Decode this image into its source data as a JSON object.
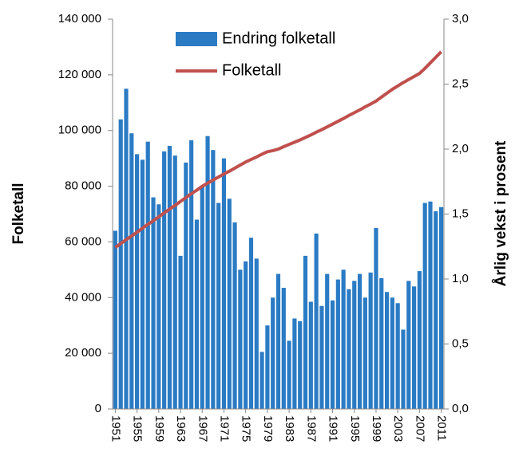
{
  "chart_data": {
    "type": "bar_line",
    "categories": [
      "1951",
      null,
      null,
      null,
      "1955",
      null,
      null,
      null,
      "1959",
      null,
      null,
      null,
      "1963",
      null,
      null,
      null,
      "1967",
      null,
      null,
      null,
      "1971",
      null,
      null,
      null,
      "1975",
      null,
      null,
      null,
      "1979",
      null,
      null,
      null,
      "1983",
      null,
      null,
      null,
      "1987",
      null,
      null,
      null,
      "1991",
      null,
      null,
      null,
      "1995",
      null,
      null,
      null,
      "1999",
      null,
      null,
      null,
      "2003",
      null,
      null,
      null,
      "2007",
      null,
      null,
      null,
      "2011"
    ],
    "series": [
      {
        "name": "Endring folketall",
        "kind": "bar",
        "color": "#2a7bc4",
        "values": [
          64000,
          104000,
          115000,
          99000,
          91500,
          89500,
          96000,
          76000,
          73500,
          92500,
          94500,
          91000,
          55000,
          88500,
          96500,
          68000,
          80000,
          98000,
          93000,
          74000,
          90000,
          75500,
          67000,
          50000,
          53000,
          61500,
          54000,
          20500,
          30000,
          40000,
          48500,
          43500,
          24500,
          32500,
          31500,
          55000,
          38500,
          63000,
          37000,
          48500,
          39000,
          46500,
          50000,
          43000,
          46000,
          48500,
          40000,
          49000,
          65000,
          47000,
          42000,
          40000,
          38000,
          28500,
          46000,
          44000,
          49500,
          74000,
          74500,
          71000,
          72500
        ]
      },
      {
        "name": "Folketall",
        "kind": "line",
        "color": "#c0504d",
        "values": [
          58000,
          59400,
          60800,
          62100,
          63500,
          64900,
          66300,
          67600,
          69000,
          70400,
          71800,
          73100,
          74500,
          75900,
          77300,
          78600,
          80000,
          81100,
          82200,
          83300,
          84400,
          85400,
          86500,
          87600,
          88700,
          89600,
          90500,
          91500,
          92400,
          92800,
          93300,
          94200,
          95000,
          95800,
          96600,
          97500,
          98400,
          99400,
          100300,
          101300,
          102300,
          103300,
          104300,
          105400,
          106400,
          107400,
          108500,
          109500,
          110600,
          112000,
          113400,
          114800,
          116000,
          117200,
          118300,
          119400,
          120500,
          122300,
          124300,
          126300,
          128300
        ]
      }
    ],
    "ylabel": "Folketall",
    "y2label": "Årlig vekst i prosent",
    "ylim": [
      0,
      140000
    ],
    "yticks": [
      0,
      {
        "value": 20000,
        "label": "20 000"
      },
      {
        "value": 40000,
        "label": "40 000"
      },
      {
        "value": 60000,
        "label": "60 000"
      },
      {
        "value": 80000,
        "label": "80 000"
      },
      {
        "value": 100000,
        "label": "100 000"
      },
      {
        "value": 120000,
        "label": "120 000"
      },
      {
        "value": 140000,
        "label": "140 000"
      }
    ],
    "y2lim": [
      0,
      3
    ],
    "y2ticks": [
      {
        "value": 0,
        "label": "0,0"
      },
      {
        "value": 0.5,
        "label": "0,5"
      },
      {
        "value": 1,
        "label": "1,0"
      },
      {
        "value": 1.5,
        "label": "1,5"
      },
      {
        "value": 2,
        "label": "2,0"
      },
      {
        "value": 2.5,
        "label": "2,5"
      },
      {
        "value": 3,
        "label": "3,0"
      }
    ],
    "legend": "top-left"
  }
}
